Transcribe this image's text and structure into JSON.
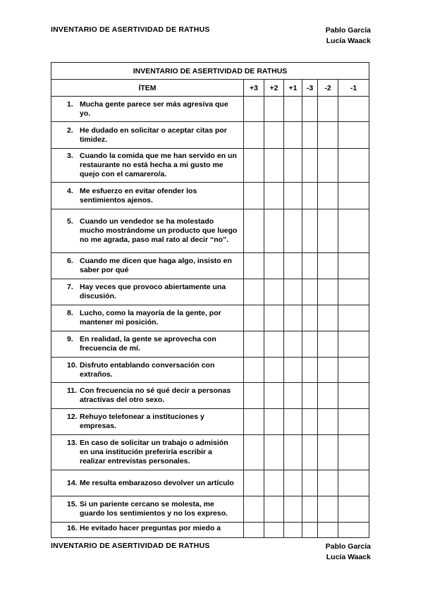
{
  "header": {
    "title": "INVENTARIO DE ASERTIVIDAD DE RATHUS",
    "authors": [
      "Pablo García",
      "Lucía Waack"
    ]
  },
  "table": {
    "title": "INVENTARIO DE ASERTIVIDAD DE RATHUS",
    "columns": [
      "ÍTEM",
      "+3",
      "+2",
      "+1",
      "-3",
      "-2",
      "-1"
    ],
    "items": [
      {
        "num": "1.",
        "text": "Mucha gente parece ser más agresiva que yo."
      },
      {
        "num": "2.",
        "text": "He dudado en solicitar o aceptar citas por timidez."
      },
      {
        "num": "3.",
        "text": "Cuando la comida que me han servido en un restaurante no está hecha a mi gusto me quejo con el camarero/a."
      },
      {
        "num": "4.",
        "text": "Me esfuerzo en evitar ofender los sentimientos ajenos."
      },
      {
        "num": "5.",
        "text": "Cuando un vendedor se ha molestado mucho mostrándome un producto que luego no me agrada, paso mal rato al decir “no”."
      },
      {
        "num": "6.",
        "text": "Cuando me dicen que haga algo, insisto en saber por qué"
      },
      {
        "num": "7.",
        "text": "Hay veces que provoco abiertamente una discusión."
      },
      {
        "num": "8.",
        "text": "Lucho, como la mayoría de la gente, por mantener mi posición."
      },
      {
        "num": "9.",
        "text": "En realidad, la gente se aprovecha con frecuencia de mí."
      },
      {
        "num": "10.",
        "text": "Disfruto entablando conversación con extraños."
      },
      {
        "num": "11.",
        "text": "Con frecuencia no sé  qué decir a personas atractivas del otro sexo."
      },
      {
        "num": "12.",
        "text": "Rehuyo telefonear a instituciones y empresas."
      },
      {
        "num": "13.",
        "text": "En caso de solicitar un trabajo o admisión en una institución preferiría escribir a realizar entrevistas personales."
      },
      {
        "num": "14.",
        "text": "Me resulta embarazoso devolver un artículo"
      },
      {
        "num": "15.",
        "text": "Si un pariente cercano se molesta, me guardo los sentimientos y no los expreso."
      },
      {
        "num": "16.",
        "text": "He evitado hacer preguntas por miedo a"
      }
    ]
  },
  "footer": {
    "title": "INVENTARIO DE ASERTIVIDAD DE RATHUS",
    "authors": [
      "Pablo García",
      "Lucía Waack"
    ]
  }
}
